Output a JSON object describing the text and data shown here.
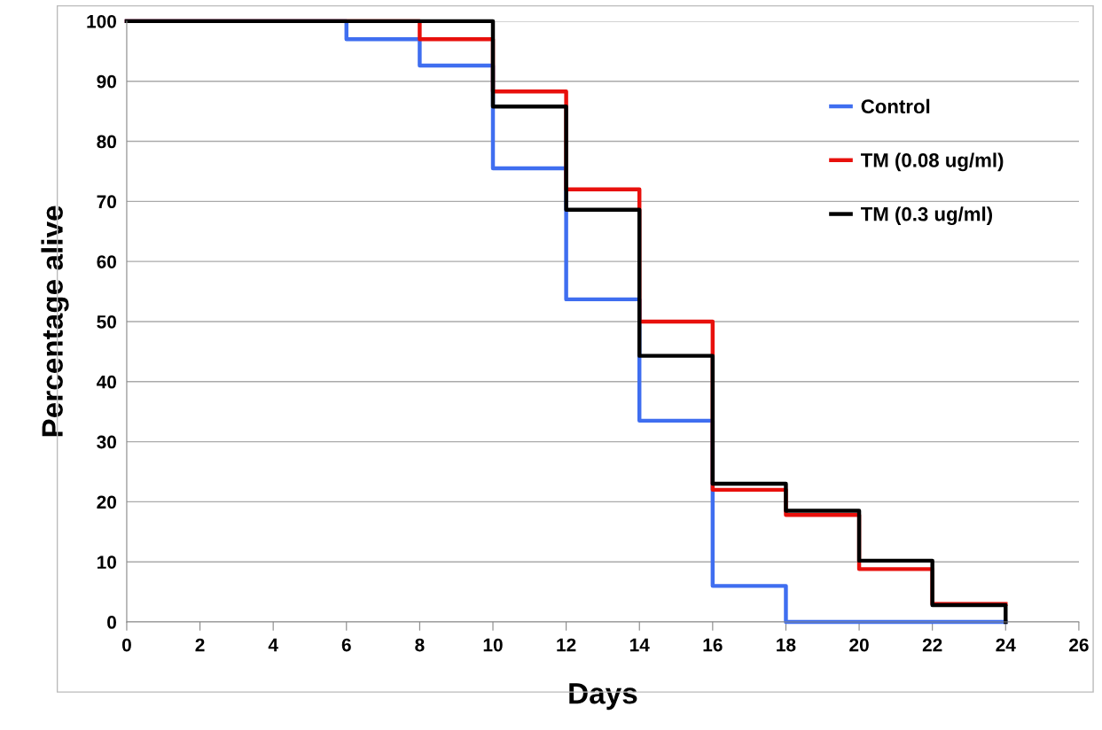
{
  "chart_data": {
    "type": "step",
    "xlabel": "Days",
    "ylabel": "Percentage alive",
    "xlim": [
      0,
      26
    ],
    "xticks": [
      0,
      2,
      4,
      6,
      8,
      10,
      12,
      14,
      16,
      18,
      20,
      22,
      24,
      26
    ],
    "ylim": [
      0,
      100
    ],
    "yticks": [
      0,
      10,
      20,
      30,
      40,
      50,
      60,
      70,
      80,
      90,
      100
    ],
    "grid": "y",
    "legend": "top right",
    "line_style": "solid",
    "marker": "none",
    "series": [
      {
        "name": "Control",
        "color": "#3f6ef0",
        "x": [
          0,
          6,
          8,
          10,
          12,
          14,
          16,
          18,
          24
        ],
        "values": [
          100,
          97,
          92.6,
          75.5,
          53.7,
          33.5,
          6,
          0,
          0
        ]
      },
      {
        "name": "TM (0.08 ug/ml)",
        "color": "#e8100c",
        "x": [
          0,
          8,
          10,
          12,
          14,
          16,
          18,
          20,
          22,
          24
        ],
        "values": [
          100,
          97,
          88.3,
          72,
          50,
          22,
          17.8,
          8.8,
          3,
          3
        ]
      },
      {
        "name": "TM (0.3 ug/ml)",
        "color": "#000000",
        "x": [
          0,
          10,
          12,
          14,
          16,
          18,
          20,
          22,
          24
        ],
        "values": [
          100,
          85.8,
          68.6,
          44.3,
          23,
          18.5,
          10.2,
          2.8,
          0
        ]
      }
    ]
  }
}
